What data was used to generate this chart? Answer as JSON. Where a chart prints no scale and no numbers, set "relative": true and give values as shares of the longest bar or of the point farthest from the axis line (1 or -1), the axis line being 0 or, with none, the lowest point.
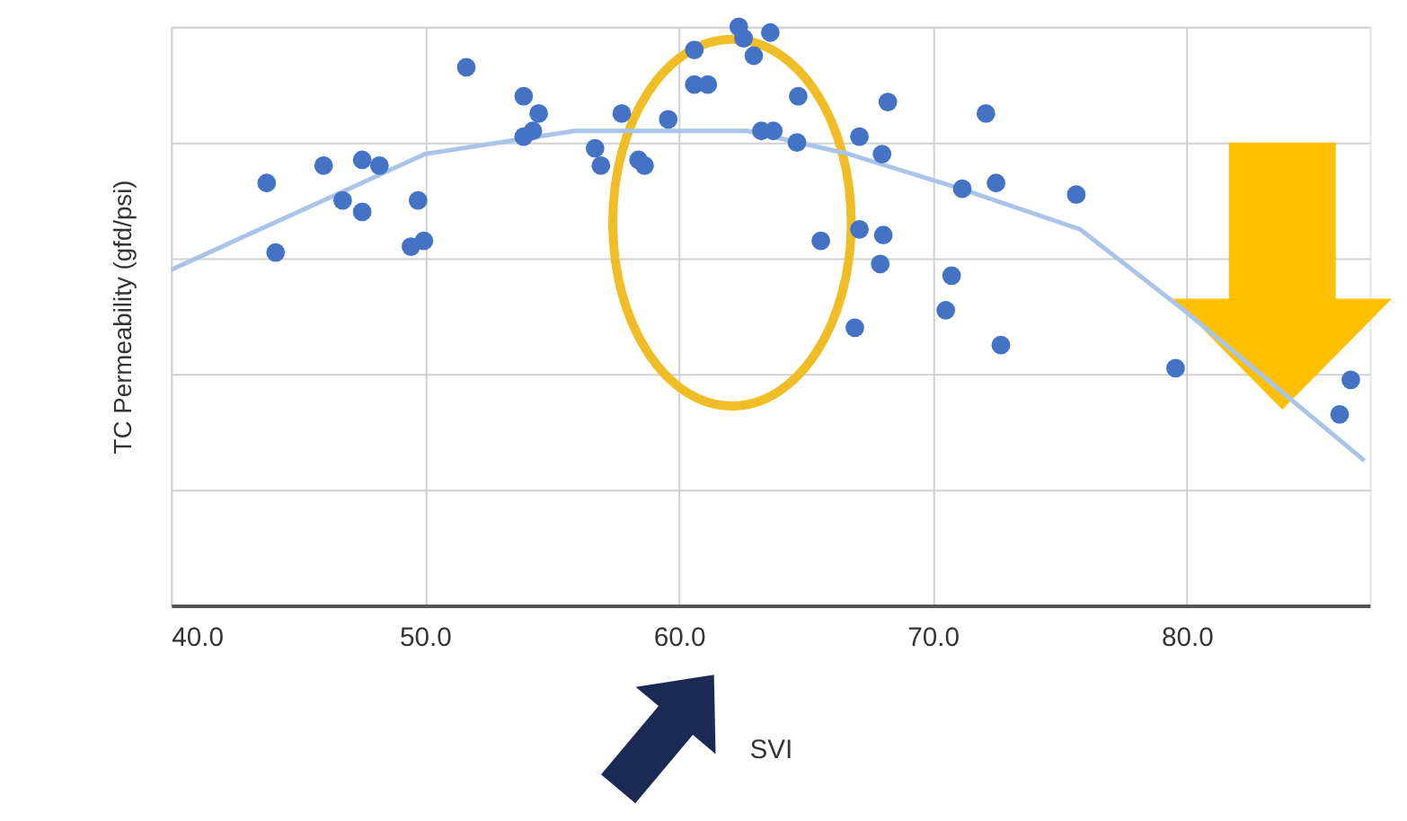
{
  "chart_data": {
    "type": "scatter",
    "xlabel": "SVI",
    "ylabel": "TC Permeability (gfd/psi)",
    "relative": true,
    "grid": true,
    "xlim": [
      40,
      87.2
    ],
    "xticks": [
      {
        "value": 40,
        "label": "40.0"
      },
      {
        "value": 50,
        "label": "50.0"
      },
      {
        "value": 60,
        "label": "60.0"
      },
      {
        "value": 70,
        "label": "70.0"
      },
      {
        "value": 80,
        "label": "80.0"
      }
    ],
    "series": [
      {
        "marker": "circle",
        "color": "#4472c4",
        "x": [
          43.77,
          44.12,
          46.01,
          46.76,
          47.53,
          48.21,
          47.53,
          49.73,
          49.45,
          49.96,
          51.63,
          53.89,
          53.89,
          54.48,
          54.25,
          56.7,
          56.93,
          57.75,
          58.41,
          58.65,
          59.58,
          60.61,
          60.61,
          61.14,
          62.36,
          62.55,
          62.95,
          63.6,
          63.25,
          63.72,
          64.7,
          64.65,
          65.59,
          67.11,
          67.11,
          68.0,
          68.05,
          67.93,
          68.23,
          66.93,
          71.16,
          70.74,
          70.51,
          72.09,
          72.49,
          72.68,
          75.65,
          79.56,
          86.46,
          86.02
        ],
        "values": [
          0.73,
          0.61,
          0.76,
          0.7,
          0.77,
          0.76,
          0.68,
          0.7,
          0.62,
          0.63,
          0.93,
          0.88,
          0.81,
          0.85,
          0.82,
          0.79,
          0.76,
          0.85,
          0.77,
          0.76,
          0.84,
          0.96,
          0.9,
          0.9,
          1.0,
          0.98,
          0.95,
          0.99,
          0.82,
          0.82,
          0.88,
          0.8,
          0.63,
          0.81,
          0.65,
          0.78,
          0.64,
          0.59,
          0.87,
          0.48,
          0.72,
          0.57,
          0.51,
          0.85,
          0.73,
          0.45,
          0.71,
          0.41,
          0.39,
          0.33
        ]
      },
      {
        "type": "line",
        "color": "#a9c4e8",
        "x": [
          40.0,
          46.5,
          50.0,
          55.9,
          62.7,
          66.7,
          71.1,
          75.8,
          79.9,
          87.0
        ],
        "values": [
          0.58,
          0.71,
          0.78,
          0.82,
          0.82,
          0.78,
          0.72,
          0.65,
          0.51,
          0.25
        ]
      }
    ]
  }
}
